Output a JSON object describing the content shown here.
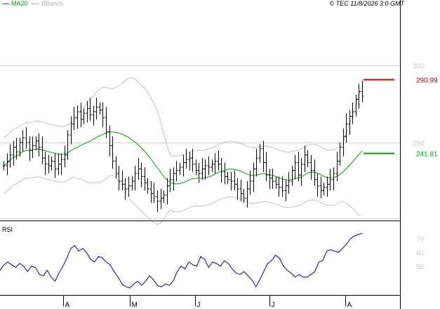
{
  "legend": {
    "ma_label": "MA20",
    "bb_label": "BBands"
  },
  "copyright": "© TEC 11/8/2026 3:0 GMT",
  "colors": {
    "ma": "#00a000",
    "bbands": "#c0c0c0",
    "price": "#000000",
    "rsi": "#0000b4",
    "resistance": "#c00000",
    "support": "#00a000",
    "grid": "#d4d4d4",
    "axis": "#000000"
  },
  "chart_data": [
    {
      "type": "ohlc",
      "x_labels": [
        "A",
        "M",
        "J",
        "J",
        "A"
      ],
      "y_ticks": [
        "300",
        "250"
      ],
      "ylim": [
        200,
        300
      ],
      "grid": true,
      "levels": [
        {
          "name": "resistance",
          "value": "290.99"
        },
        {
          "name": "support",
          "value": "241.81"
        }
      ],
      "closes": [
        235,
        238,
        242,
        247,
        244,
        250,
        253,
        250,
        245,
        248,
        251,
        247,
        240,
        236,
        235,
        238,
        233,
        236,
        239,
        242,
        255,
        262,
        266,
        270,
        265,
        269,
        272,
        268,
        270,
        273,
        271,
        266,
        257,
        248,
        238,
        230,
        225,
        223,
        220,
        222,
        225,
        230,
        233,
        228,
        224,
        220,
        217,
        215,
        212,
        214,
        216,
        222,
        226,
        230,
        232,
        234,
        237,
        239,
        240,
        236,
        232,
        230,
        233,
        235,
        234,
        236,
        238,
        236,
        231,
        228,
        226,
        225,
        223,
        220,
        217,
        214,
        220,
        225,
        233,
        240,
        246,
        237,
        229,
        227,
        225,
        223,
        221,
        219,
        222,
        225,
        232,
        237,
        229,
        236,
        242,
        237,
        232,
        226,
        222,
        219,
        221,
        223,
        226,
        230,
        238,
        247,
        254,
        262,
        267,
        270,
        278,
        283,
        280
      ]
    },
    {
      "type": "line",
      "title": "RSI",
      "y_ticks": [
        "70",
        "60",
        "50"
      ],
      "ylim": [
        30,
        80
      ],
      "values": [
        47,
        51,
        53,
        51,
        49,
        52,
        50,
        46,
        50,
        49,
        44,
        43,
        47,
        42,
        39,
        45,
        50,
        56,
        63,
        65,
        61,
        63,
        60,
        55,
        53,
        57,
        56,
        53,
        51,
        46,
        42,
        37,
        35,
        34,
        37,
        39,
        36,
        39,
        43,
        40,
        36,
        35,
        37,
        36,
        39,
        46,
        50,
        48,
        53,
        51,
        50,
        57,
        55,
        49,
        53,
        52,
        50,
        54,
        52,
        48,
        45,
        44,
        46,
        43,
        40,
        35,
        40,
        46,
        52,
        54,
        58,
        56,
        50,
        47,
        45,
        42,
        44,
        42,
        42,
        44,
        46,
        53,
        54,
        61,
        62,
        61,
        60,
        63,
        66,
        70,
        72,
        73,
        74
      ]
    }
  ]
}
